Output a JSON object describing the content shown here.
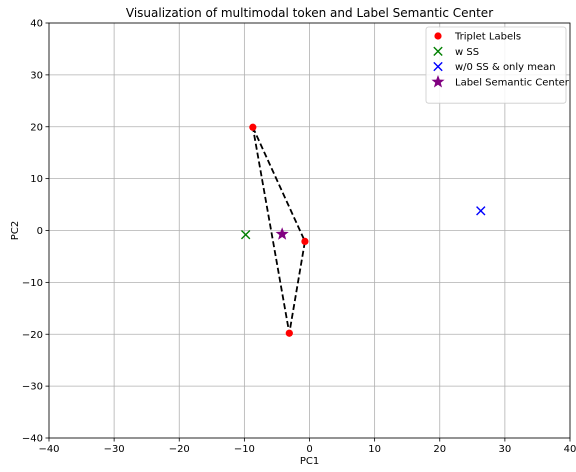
{
  "chart_data": {
    "type": "scatter",
    "title": "Visualization of multimodal token and Label Semantic Center",
    "xlabel": "PC1",
    "ylabel": "PC2",
    "xlim": [
      -40,
      40
    ],
    "ylim": [
      -40,
      40
    ],
    "xticks": [
      -40,
      -30,
      -20,
      -10,
      0,
      10,
      20,
      30,
      40
    ],
    "yticks": [
      -40,
      -30,
      -20,
      -10,
      0,
      10,
      20,
      30,
      40
    ],
    "xtick_labels": [
      "−40",
      "−30",
      "−20",
      "−10",
      "0",
      "10",
      "20",
      "30",
      "40"
    ],
    "ytick_labels": [
      "−40",
      "−30",
      "−20",
      "−10",
      "0",
      "10",
      "20",
      "30",
      "40"
    ],
    "grid": true,
    "legend_position": "top-right",
    "series": [
      {
        "name": "Triplet Labels",
        "marker": "circle",
        "color": "#ff0000",
        "points": [
          {
            "x": -8.7,
            "y": 19.9
          },
          {
            "x": -0.7,
            "y": -2.1
          },
          {
            "x": -3.1,
            "y": -19.8
          }
        ]
      },
      {
        "name": "w SS",
        "marker": "x",
        "color": "#008000",
        "points": [
          {
            "x": -9.8,
            "y": -0.8
          }
        ]
      },
      {
        "name": "w/0 SS & only mean",
        "marker": "x",
        "color": "#0000ff",
        "points": [
          {
            "x": 26.3,
            "y": 3.8
          }
        ]
      },
      {
        "name": "Label Semantic Center",
        "marker": "star",
        "color": "#800080",
        "points": [
          {
            "x": -4.2,
            "y": -0.7
          }
        ]
      }
    ],
    "annotations": [
      {
        "type": "triangle-outline",
        "style": "dashed",
        "color": "#000000",
        "connects_series": "Triplet Labels"
      }
    ]
  }
}
